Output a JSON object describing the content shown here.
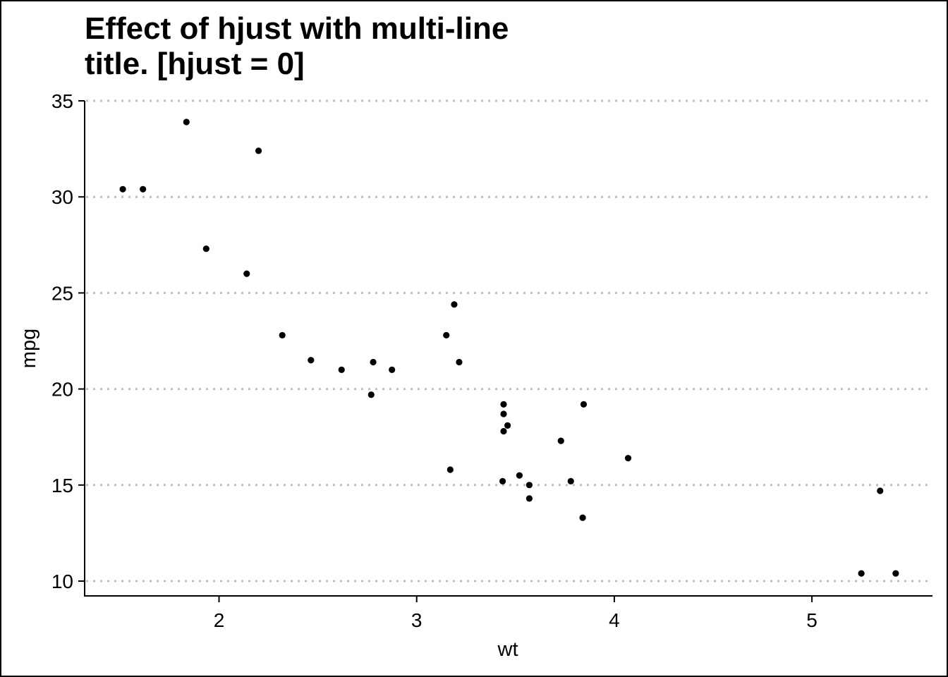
{
  "chart_data": {
    "type": "scatter",
    "title_lines": [
      "Effect of hjust with multi-line",
      "title. [hjust = 0]"
    ],
    "xlabel": "wt",
    "ylabel": "mpg",
    "xlim": [
      1.32,
      5.61
    ],
    "ylim": [
      9.23,
      35.0
    ],
    "x_ticks": [
      2,
      3,
      4,
      5
    ],
    "y_ticks": [
      10,
      15,
      20,
      25,
      30,
      35
    ],
    "grid": "horizontal dotted major",
    "point_color": "#000000",
    "grid_color": "#bfbfbf",
    "points": [
      {
        "x": 2.62,
        "y": 21.0
      },
      {
        "x": 2.875,
        "y": 21.0
      },
      {
        "x": 2.32,
        "y": 22.8
      },
      {
        "x": 3.215,
        "y": 21.4
      },
      {
        "x": 3.44,
        "y": 18.7
      },
      {
        "x": 3.46,
        "y": 18.1
      },
      {
        "x": 3.57,
        "y": 14.3
      },
      {
        "x": 3.19,
        "y": 24.4
      },
      {
        "x": 3.15,
        "y": 22.8
      },
      {
        "x": 3.44,
        "y": 19.2
      },
      {
        "x": 3.44,
        "y": 17.8
      },
      {
        "x": 4.07,
        "y": 16.4
      },
      {
        "x": 3.73,
        "y": 17.3
      },
      {
        "x": 3.78,
        "y": 15.2
      },
      {
        "x": 5.25,
        "y": 10.4
      },
      {
        "x": 5.424,
        "y": 10.4
      },
      {
        "x": 5.345,
        "y": 14.7
      },
      {
        "x": 2.2,
        "y": 32.4
      },
      {
        "x": 1.615,
        "y": 30.4
      },
      {
        "x": 1.835,
        "y": 33.9
      },
      {
        "x": 2.465,
        "y": 21.5
      },
      {
        "x": 3.52,
        "y": 15.5
      },
      {
        "x": 3.435,
        "y": 15.2
      },
      {
        "x": 3.84,
        "y": 13.3
      },
      {
        "x": 3.845,
        "y": 19.2
      },
      {
        "x": 1.935,
        "y": 27.3
      },
      {
        "x": 2.14,
        "y": 26.0
      },
      {
        "x": 1.513,
        "y": 30.4
      },
      {
        "x": 3.17,
        "y": 15.8
      },
      {
        "x": 2.77,
        "y": 19.7
      },
      {
        "x": 3.57,
        "y": 15.0
      },
      {
        "x": 2.78,
        "y": 21.4
      }
    ]
  }
}
